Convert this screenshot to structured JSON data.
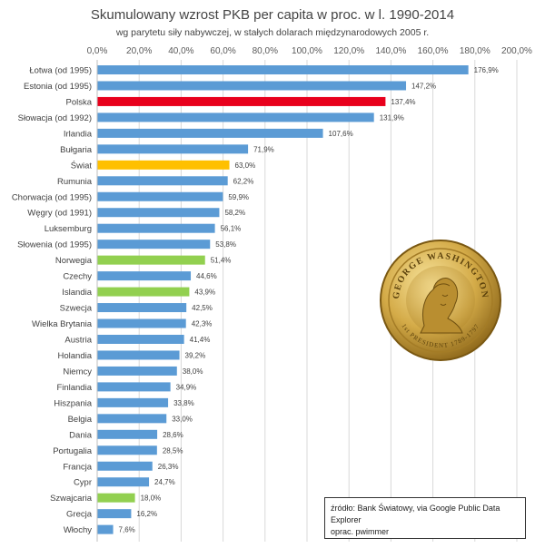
{
  "chart_data": {
    "type": "bar",
    "orientation": "horizontal",
    "title": "Skumulowany wzrost PKB per capita w proc. w l. 1990-2014",
    "subtitle": "wg parytetu siły nabywczej, w stałych dolarach międzynarodowych 2005 r.",
    "xlim": [
      0,
      200
    ],
    "x_ticks": [
      "0,0%",
      "20,0%",
      "40,0%",
      "60,0%",
      "80,0%",
      "100,0%",
      "120,0%",
      "140,0%",
      "160,0%",
      "180,0%",
      "200,0%"
    ],
    "x_tick_values": [
      0,
      20,
      40,
      60,
      80,
      100,
      120,
      140,
      160,
      180,
      200
    ],
    "grid": true,
    "categories": [
      "Łotwa (od 1995)",
      "Estonia (od 1995)",
      "Polska",
      "Słowacja (od 1992)",
      "Irlandia",
      "Bułgaria",
      "Świat",
      "Rumunia",
      "Chorwacja (od 1995)",
      "Węgry (od 1991)",
      "Luksemburg",
      "Słowenia (od 1995)",
      "Norwegia",
      "Czechy",
      "Islandia",
      "Szwecja",
      "Wielka Brytania",
      "Austria",
      "Holandia",
      "Niemcy",
      "Finlandia",
      "Hiszpania",
      "Belgia",
      "Dania",
      "Portugalia",
      "Francja",
      "Cypr",
      "Szwajcaria",
      "Grecja",
      "Włochy"
    ],
    "values": [
      176.9,
      147.2,
      137.4,
      131.9,
      107.6,
      71.9,
      63.0,
      62.2,
      59.9,
      58.2,
      56.1,
      53.8,
      51.4,
      44.6,
      43.9,
      42.5,
      42.3,
      41.4,
      39.2,
      38.0,
      34.9,
      33.8,
      33.0,
      28.6,
      28.5,
      26.3,
      24.7,
      18.0,
      16.2,
      7.6
    ],
    "value_labels": [
      "176,9%",
      "147,2%",
      "137,4%",
      "131,9%",
      "107,6%",
      "71,9%",
      "63,0%",
      "62,2%",
      "59,9%",
      "58,2%",
      "56,1%",
      "53,8%",
      "51,4%",
      "44,6%",
      "43,9%",
      "42,5%",
      "42,3%",
      "41,4%",
      "39,2%",
      "38,0%",
      "34,9%",
      "33,8%",
      "33,0%",
      "28,6%",
      "28,5%",
      "26,3%",
      "24,7%",
      "18,0%",
      "16,2%",
      "7,6%"
    ],
    "colors": {
      "default": "#5b9bd5",
      "highlight_red": "#e8001c",
      "highlight_yellow": "#ffc000",
      "highlight_green": "#92d050"
    },
    "bar_color_keys": [
      "default",
      "default",
      "highlight_red",
      "default",
      "default",
      "default",
      "highlight_yellow",
      "default",
      "default",
      "default",
      "default",
      "default",
      "highlight_green",
      "default",
      "highlight_green",
      "default",
      "default",
      "default",
      "default",
      "default",
      "default",
      "default",
      "default",
      "default",
      "default",
      "default",
      "default",
      "highlight_green",
      "default",
      "default"
    ]
  },
  "source": {
    "line1": "źródło: Bank Światowy, via Google Public Data Explorer",
    "line2": "oprac. pwimmer"
  },
  "coin": {
    "top_text": "GEORGE WASHINGTON",
    "bottom_text": "1st PRESIDENT 1789-1797",
    "icon": "washington-dollar-coin-icon",
    "colors": {
      "gold": "#c9a13a",
      "gold_dark": "#8a6418",
      "gold_light": "#f2d98a"
    }
  }
}
